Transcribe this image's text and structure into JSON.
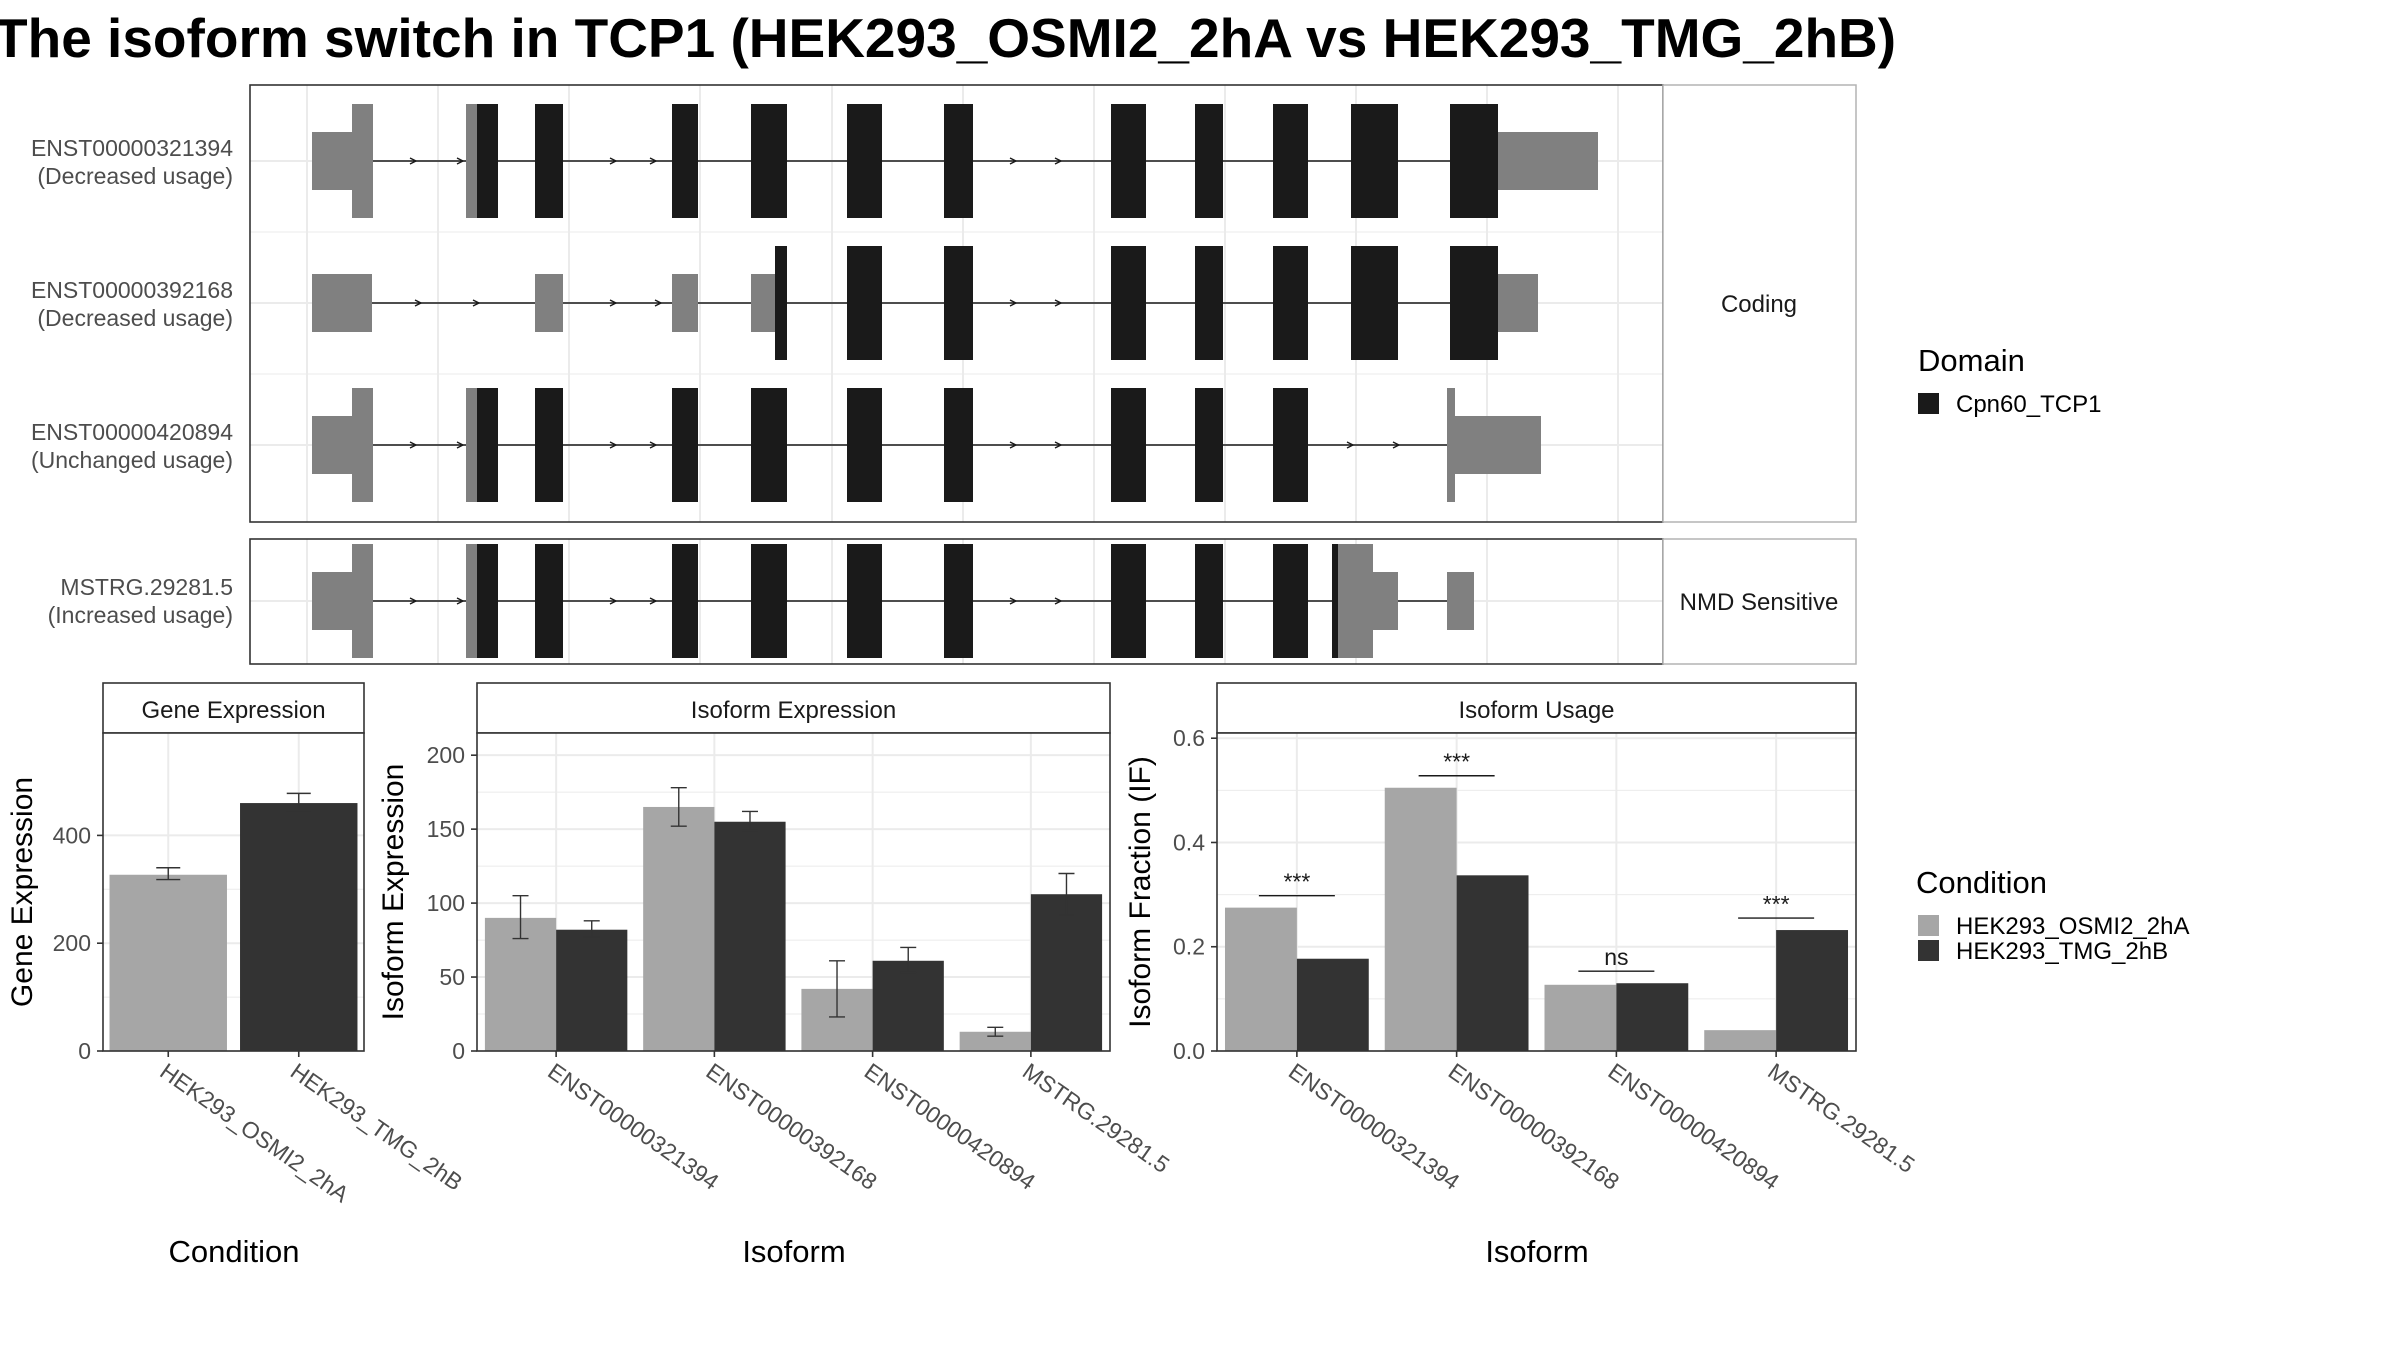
{
  "title": "The isoform switch in TCP1 (HEK293_OSMI2_2hA vs HEK293_TMG_2hB)",
  "colors": {
    "cond_a": "#a6a6a6",
    "cond_b": "#333333",
    "domain": "#1a1a1a",
    "utr": "#808080",
    "grid": "#ebebeb",
    "border": "#4d4d4d",
    "strip_bg": "#ffffff"
  },
  "structure": {
    "facets": [
      {
        "label": "Coding",
        "isoforms": [
          {
            "id": "ENST00000321394",
            "usage": "(Decreased usage)"
          },
          {
            "id": "ENST00000392168",
            "usage": "(Decreased usage)"
          },
          {
            "id": "ENST00000420894",
            "usage": "(Unchanged usage)"
          }
        ]
      },
      {
        "label": "NMD Sensitive",
        "isoforms": [
          {
            "id": "MSTRG.29281.5",
            "usage": "(Increased usage)"
          }
        ]
      }
    ]
  },
  "legend": {
    "domain_title": "Domain",
    "domain_items": [
      "Cpn60_TCP1"
    ],
    "condition_title": "Condition",
    "condition_items": [
      "HEK293_OSMI2_2hA",
      "HEK293_TMG_2hB"
    ]
  },
  "chart_data": [
    {
      "type": "bar",
      "title": "Gene Expression",
      "xlabel": "Condition",
      "ylabel": "Gene Expression",
      "ylim": [
        0,
        590
      ],
      "yticks": [
        0,
        200,
        400
      ],
      "categories": [
        "HEK293_OSMI2_2hA",
        "HEK293_TMG_2hB"
      ],
      "values": [
        327,
        460
      ],
      "errors": [
        [
          318,
          340
        ],
        [
          445,
          478
        ]
      ]
    },
    {
      "type": "bar",
      "title": "Isoform Expression",
      "xlabel": "Isoform",
      "ylabel": "Isoform Expression",
      "ylim": [
        0,
        215
      ],
      "yticks": [
        0,
        50,
        100,
        150,
        200
      ],
      "categories": [
        "ENST00000321394",
        "ENST00000392168",
        "ENST00000420894",
        "MSTRG.29281.5"
      ],
      "series": [
        {
          "name": "HEK293_OSMI2_2hA",
          "values": [
            90,
            165,
            42,
            13
          ],
          "errors": [
            [
              76,
              105
            ],
            [
              152,
              178
            ],
            [
              23,
              61
            ],
            [
              10,
              16
            ]
          ]
        },
        {
          "name": "HEK293_TMG_2hB",
          "values": [
            82,
            155,
            61,
            106
          ],
          "errors": [
            [
              77,
              88
            ],
            [
              149,
              162
            ],
            [
              53,
              70
            ],
            [
              92,
              120
            ]
          ]
        }
      ]
    },
    {
      "type": "bar",
      "title": "Isoform Usage",
      "xlabel": "Isoform",
      "ylabel": "Isoform Fraction (IF)",
      "ylim": [
        0,
        0.61
      ],
      "yticks": [
        0.0,
        0.2,
        0.4,
        0.6
      ],
      "yticklabels": [
        "0.0",
        "0.2",
        "0.4",
        "0.6"
      ],
      "categories": [
        "ENST00000321394",
        "ENST00000392168",
        "ENST00000420894",
        "MSTRG.29281.5"
      ],
      "series": [
        {
          "name": "HEK293_OSMI2_2hA",
          "values": [
            0.275,
            0.505,
            0.127,
            0.04
          ]
        },
        {
          "name": "HEK293_TMG_2hB",
          "values": [
            0.177,
            0.337,
            0.13,
            0.232
          ]
        }
      ],
      "significance": [
        "***",
        "***",
        "ns",
        "***"
      ]
    }
  ]
}
